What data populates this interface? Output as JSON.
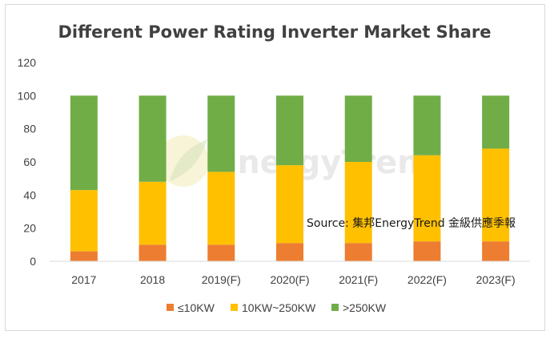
{
  "chart_data": {
    "type": "bar",
    "stacked": true,
    "title": "Different Power Rating Inverter Market Share",
    "categories": [
      "2017",
      "2018",
      "2019(F)",
      "2020(F)",
      "2021(F)",
      "2022(F)",
      "2023(F)"
    ],
    "series": [
      {
        "name": "≤10KW",
        "color": "#ed7d31",
        "values": [
          6,
          10,
          10,
          11,
          11,
          12,
          12
        ]
      },
      {
        "name": "10KW~250KW",
        "color": "#ffc000",
        "values": [
          37,
          38,
          44,
          47,
          49,
          52,
          56
        ]
      },
      {
        "name": ">250KW",
        "color": "#70ad47",
        "values": [
          57,
          52,
          46,
          42,
          40,
          36,
          32
        ]
      }
    ],
    "ylim": [
      0,
      120
    ],
    "yticks": [
      "0",
      "20",
      "40",
      "60",
      "80",
      "100",
      "120"
    ],
    "grid": false,
    "legend_position": "bottom",
    "annotation": "Source: 集邦EnergyTrend 金級供應季報",
    "watermark": "EnergyTrend"
  }
}
